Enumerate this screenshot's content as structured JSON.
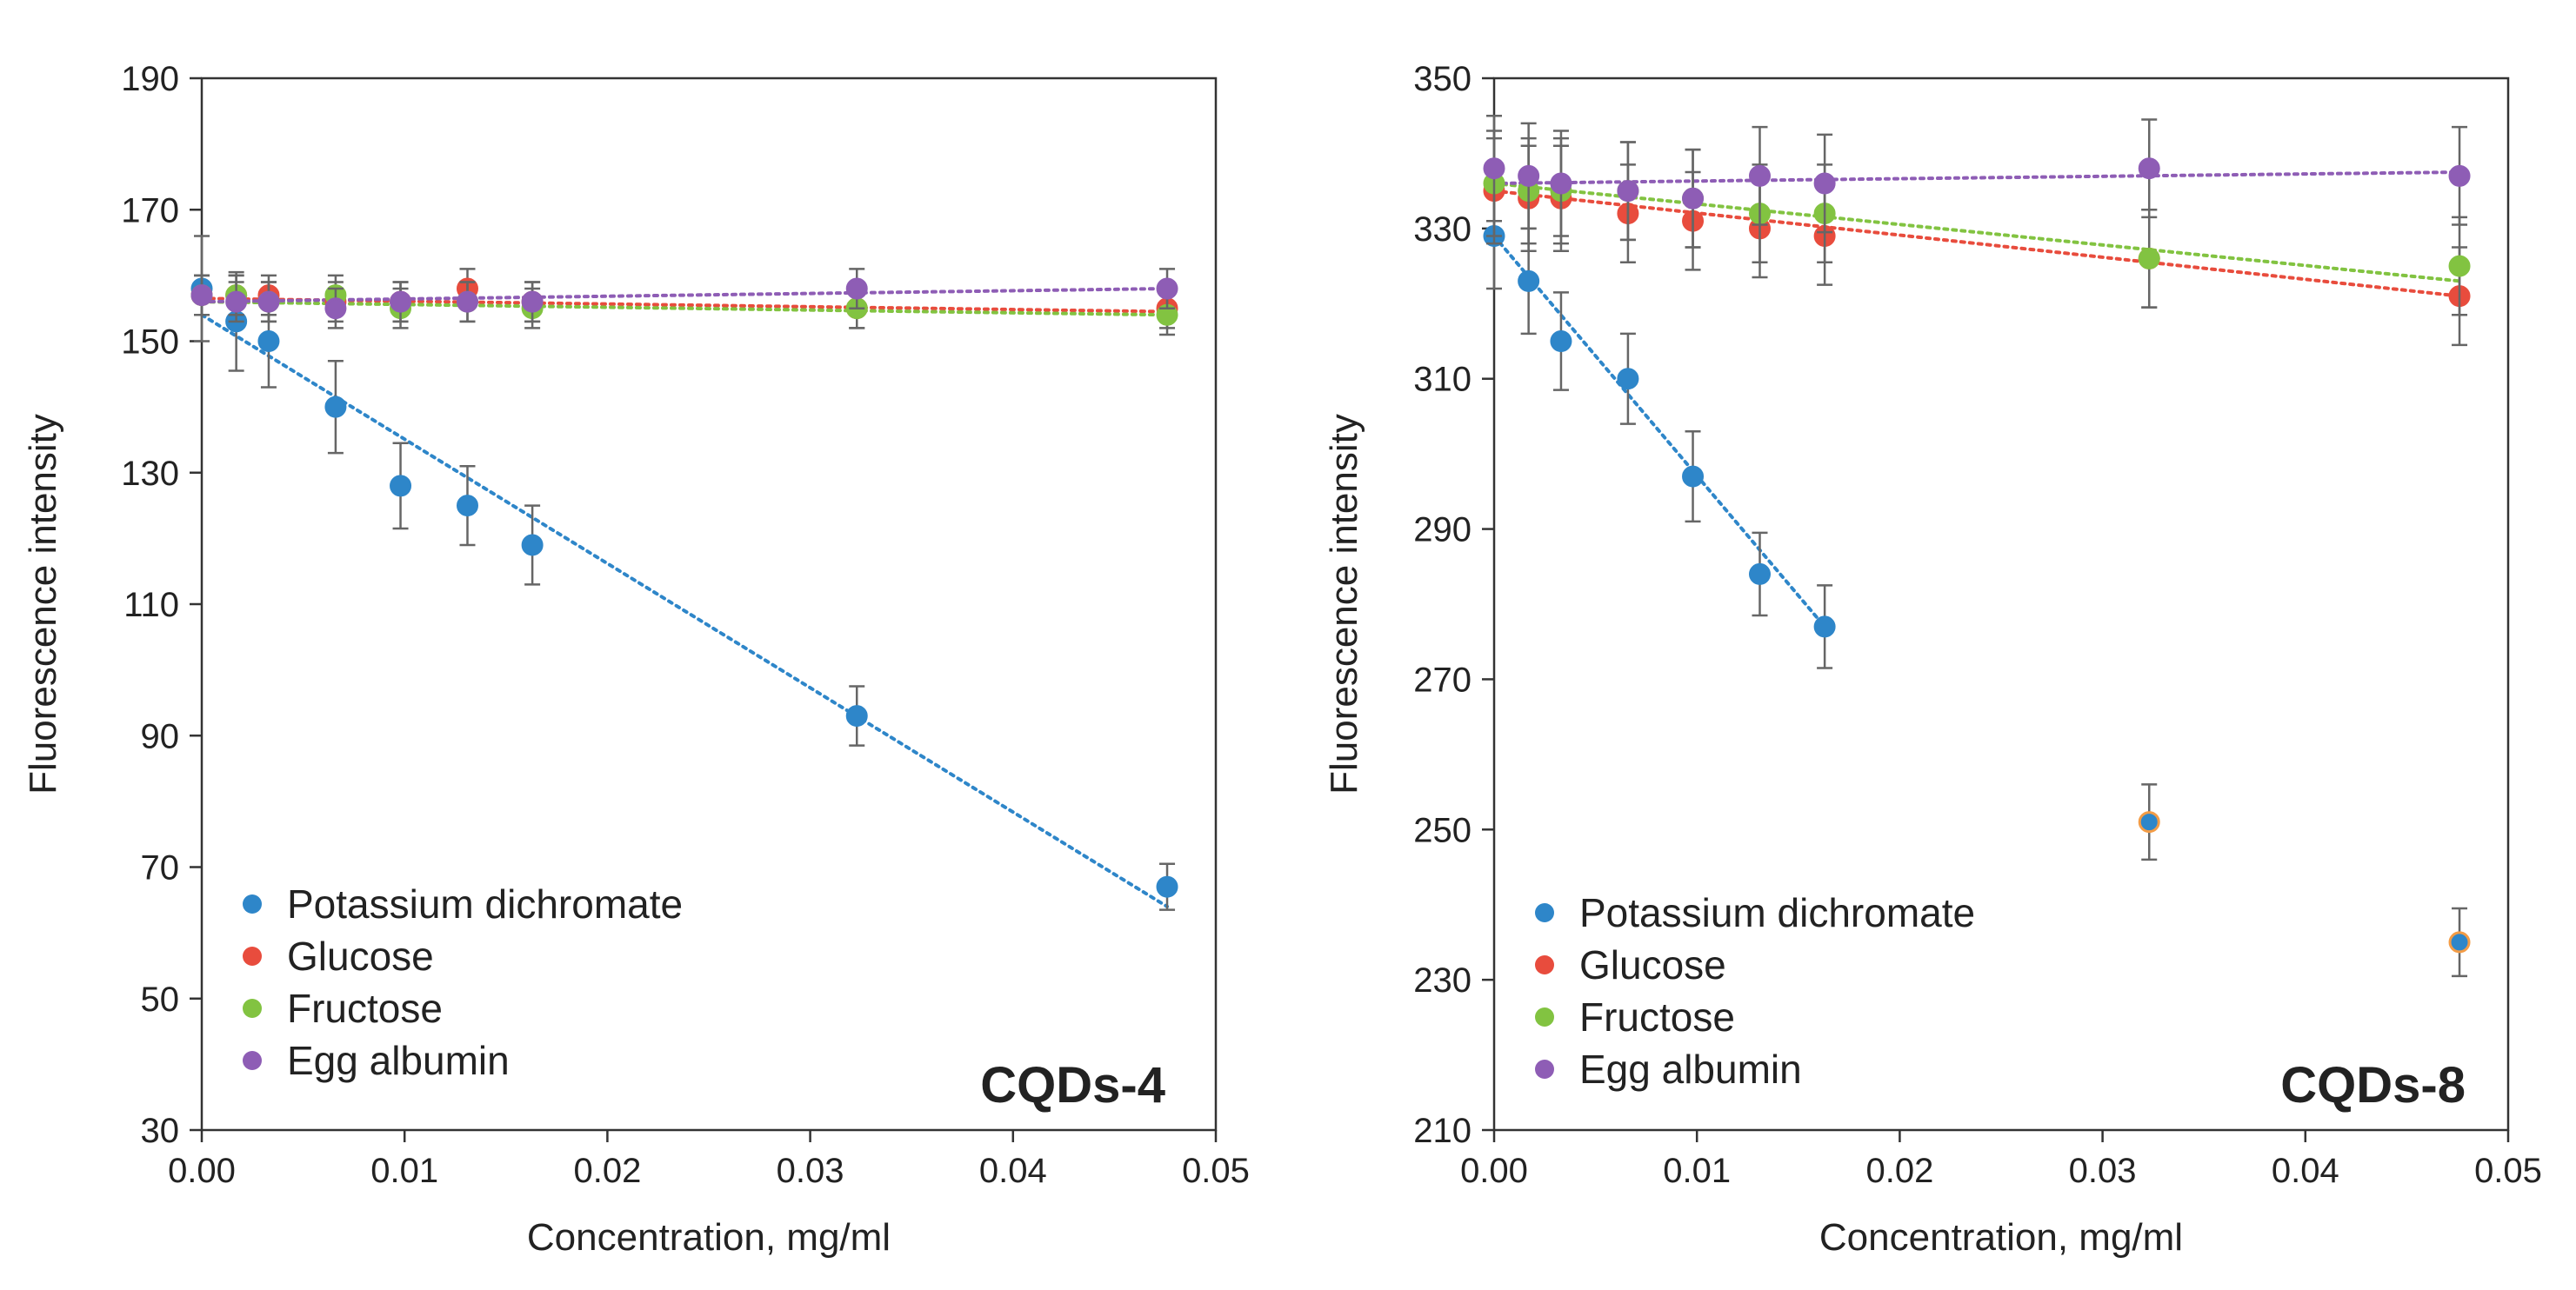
{
  "chart_data": [
    {
      "type": "scatter",
      "panel_label": "CQDs-4",
      "xlabel": "Concentration, mg/ml",
      "ylabel": "Fluorescence intensity",
      "xlim": [
        0.0,
        0.05
      ],
      "ylim": [
        30,
        190
      ],
      "x_ticks": [
        0.0,
        0.01,
        0.02,
        0.03,
        0.04,
        0.05
      ],
      "x_tick_labels": [
        "0.00",
        "0.01",
        "0.02",
        "0.03",
        "0.04",
        "0.05"
      ],
      "y_ticks": [
        30,
        50,
        70,
        90,
        110,
        130,
        150,
        170,
        190
      ],
      "y_tick_labels": [
        "30",
        "50",
        "70",
        "90",
        "110",
        "130",
        "150",
        "170",
        "190"
      ],
      "legend_position": "bottom-left",
      "series": [
        {
          "name": "Potassium dichromate",
          "color": "#2e86c9",
          "x": [
            0.0,
            0.0017,
            0.0033,
            0.0066,
            0.0098,
            0.0131,
            0.0163,
            0.0323,
            0.0476
          ],
          "values": [
            158,
            153,
            150,
            140,
            128,
            125,
            119,
            93,
            67
          ],
          "errors": [
            8,
            7.5,
            7,
            7,
            6.5,
            6,
            6,
            4.5,
            3.5
          ],
          "trend": {
            "x": [
              0.0,
              0.0476
            ],
            "values": [
              154,
              64
            ]
          }
        },
        {
          "name": "Glucose",
          "color": "#e84c3d",
          "x": [
            0.0,
            0.0017,
            0.0033,
            0.0066,
            0.0098,
            0.0131,
            0.0163,
            0.0323,
            0.0476
          ],
          "values": [
            157,
            157,
            157,
            156,
            156,
            158,
            156,
            155,
            155
          ],
          "errors": [
            3,
            3,
            3,
            3,
            3,
            3,
            3,
            3,
            3
          ],
          "trend": {
            "x": [
              0.0,
              0.0476
            ],
            "values": [
              156.5,
              154.5
            ]
          }
        },
        {
          "name": "Fructose",
          "color": "#82c341",
          "x": [
            0.0,
            0.0017,
            0.0033,
            0.0066,
            0.0098,
            0.0131,
            0.0163,
            0.0323,
            0.0476
          ],
          "values": [
            157,
            157,
            156,
            157,
            155,
            156,
            155,
            155,
            154
          ],
          "errors": [
            3,
            3,
            3,
            3,
            3,
            3,
            3,
            3,
            3
          ],
          "trend": {
            "x": [
              0.0,
              0.0476
            ],
            "values": [
              156,
              154
            ]
          }
        },
        {
          "name": "Egg albumin",
          "color": "#8e5db5",
          "x": [
            0.0,
            0.0017,
            0.0033,
            0.0066,
            0.0098,
            0.0131,
            0.0163,
            0.0323,
            0.0476
          ],
          "values": [
            157,
            156,
            156,
            155,
            156,
            156,
            156,
            158,
            158
          ],
          "errors": [
            3,
            3,
            3,
            3,
            3,
            3,
            3,
            3,
            3
          ],
          "trend": {
            "x": [
              0.0,
              0.0476
            ],
            "values": [
              156,
              158
            ]
          }
        }
      ]
    },
    {
      "type": "scatter",
      "panel_label": "CQDs-8",
      "xlabel": "Concentration, mg/ml",
      "ylabel": "Fluorescence intensity",
      "xlim": [
        0.0,
        0.05
      ],
      "ylim": [
        210,
        350
      ],
      "x_ticks": [
        0.0,
        0.01,
        0.02,
        0.03,
        0.04,
        0.05
      ],
      "x_tick_labels": [
        "0.00",
        "0.01",
        "0.02",
        "0.03",
        "0.04",
        "0.05"
      ],
      "y_ticks": [
        210,
        230,
        250,
        270,
        290,
        310,
        330,
        350
      ],
      "y_tick_labels": [
        "210",
        "230",
        "250",
        "270",
        "290",
        "310",
        "330",
        "350"
      ],
      "legend_position": "bottom-left",
      "series": [
        {
          "name": "Potassium dichromate",
          "color": "#2e86c9",
          "edge_colors": [
            "#2e86c9",
            "#2e86c9",
            "#2e86c9",
            "#2e86c9",
            "#2e86c9",
            "#2e86c9",
            "#2e86c9",
            "#f39c46",
            "#f39c46"
          ],
          "x": [
            0.0,
            0.0017,
            0.0033,
            0.0066,
            0.0098,
            0.0131,
            0.0163,
            0.0323,
            0.0476
          ],
          "values": [
            329,
            323,
            315,
            310,
            297,
            284,
            277,
            251,
            235
          ],
          "errors": [
            7,
            7,
            6.5,
            6,
            6,
            5.5,
            5.5,
            5,
            4.5
          ],
          "trend": {
            "x": [
              0.0,
              0.0163
            ],
            "values": [
              329,
              277
            ]
          }
        },
        {
          "name": "Glucose",
          "color": "#e84c3d",
          "x": [
            0.0,
            0.0017,
            0.0033,
            0.0066,
            0.0098,
            0.0131,
            0.0163,
            0.0323,
            0.0476
          ],
          "values": [
            335,
            334,
            334,
            332,
            331,
            330,
            329,
            326,
            321
          ],
          "errors": [
            7,
            7,
            7,
            6.5,
            6.5,
            6.5,
            6.5,
            6.5,
            6.5
          ],
          "trend": {
            "x": [
              0.0,
              0.0476
            ],
            "values": [
              335,
              321
            ]
          }
        },
        {
          "name": "Fructose",
          "color": "#82c341",
          "x": [
            0.0,
            0.0017,
            0.0033,
            0.0066,
            0.0098,
            0.0131,
            0.0163,
            0.0323,
            0.0476
          ],
          "values": [
            336,
            335,
            335,
            335,
            334,
            332,
            332,
            326,
            325
          ],
          "errors": [
            7,
            7,
            7,
            6.5,
            6.5,
            6.5,
            6.5,
            6.5,
            6.5
          ],
          "trend": {
            "x": [
              0.0,
              0.0476
            ],
            "values": [
              336,
              323
            ]
          }
        },
        {
          "name": "Egg albumin",
          "color": "#8e5db5",
          "x": [
            0.0,
            0.0017,
            0.0033,
            0.0066,
            0.0098,
            0.0131,
            0.0163,
            0.0323,
            0.0476
          ],
          "values": [
            338,
            337,
            336,
            335,
            334,
            337,
            336,
            338,
            337
          ],
          "errors": [
            7,
            7,
            7,
            6.5,
            6.5,
            6.5,
            6.5,
            6.5,
            6.5
          ],
          "trend": {
            "x": [
              0.0,
              0.0476
            ],
            "values": [
              336,
              337.5
            ]
          }
        }
      ]
    }
  ]
}
